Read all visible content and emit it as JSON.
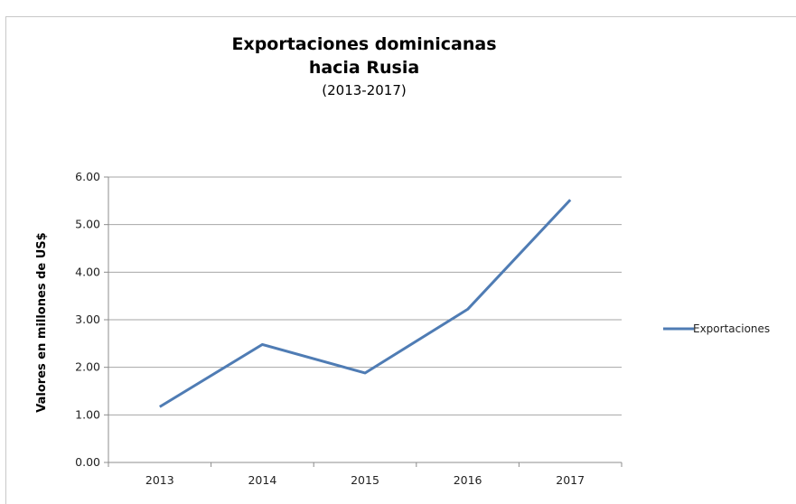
{
  "chart_data": {
    "type": "line",
    "title_line1": "Exportaciones dominicanas",
    "title_line2": "hacia Rusia",
    "subtitle": "(2013-2017)",
    "xlabel": "",
    "ylabel": "Valores en millones de US$",
    "categories": [
      "2013",
      "2014",
      "2015",
      "2016",
      "2017"
    ],
    "series": [
      {
        "name": "Exportaciones",
        "values": [
          1.17,
          2.48,
          1.88,
          3.22,
          5.52
        ],
        "color": "#4f7cb4"
      }
    ],
    "ylim": [
      0,
      6
    ],
    "yticks": [
      "0.00",
      "1.00",
      "2.00",
      "3.00",
      "4.00",
      "5.00",
      "6.00"
    ],
    "grid": true,
    "legend_position": "right"
  }
}
